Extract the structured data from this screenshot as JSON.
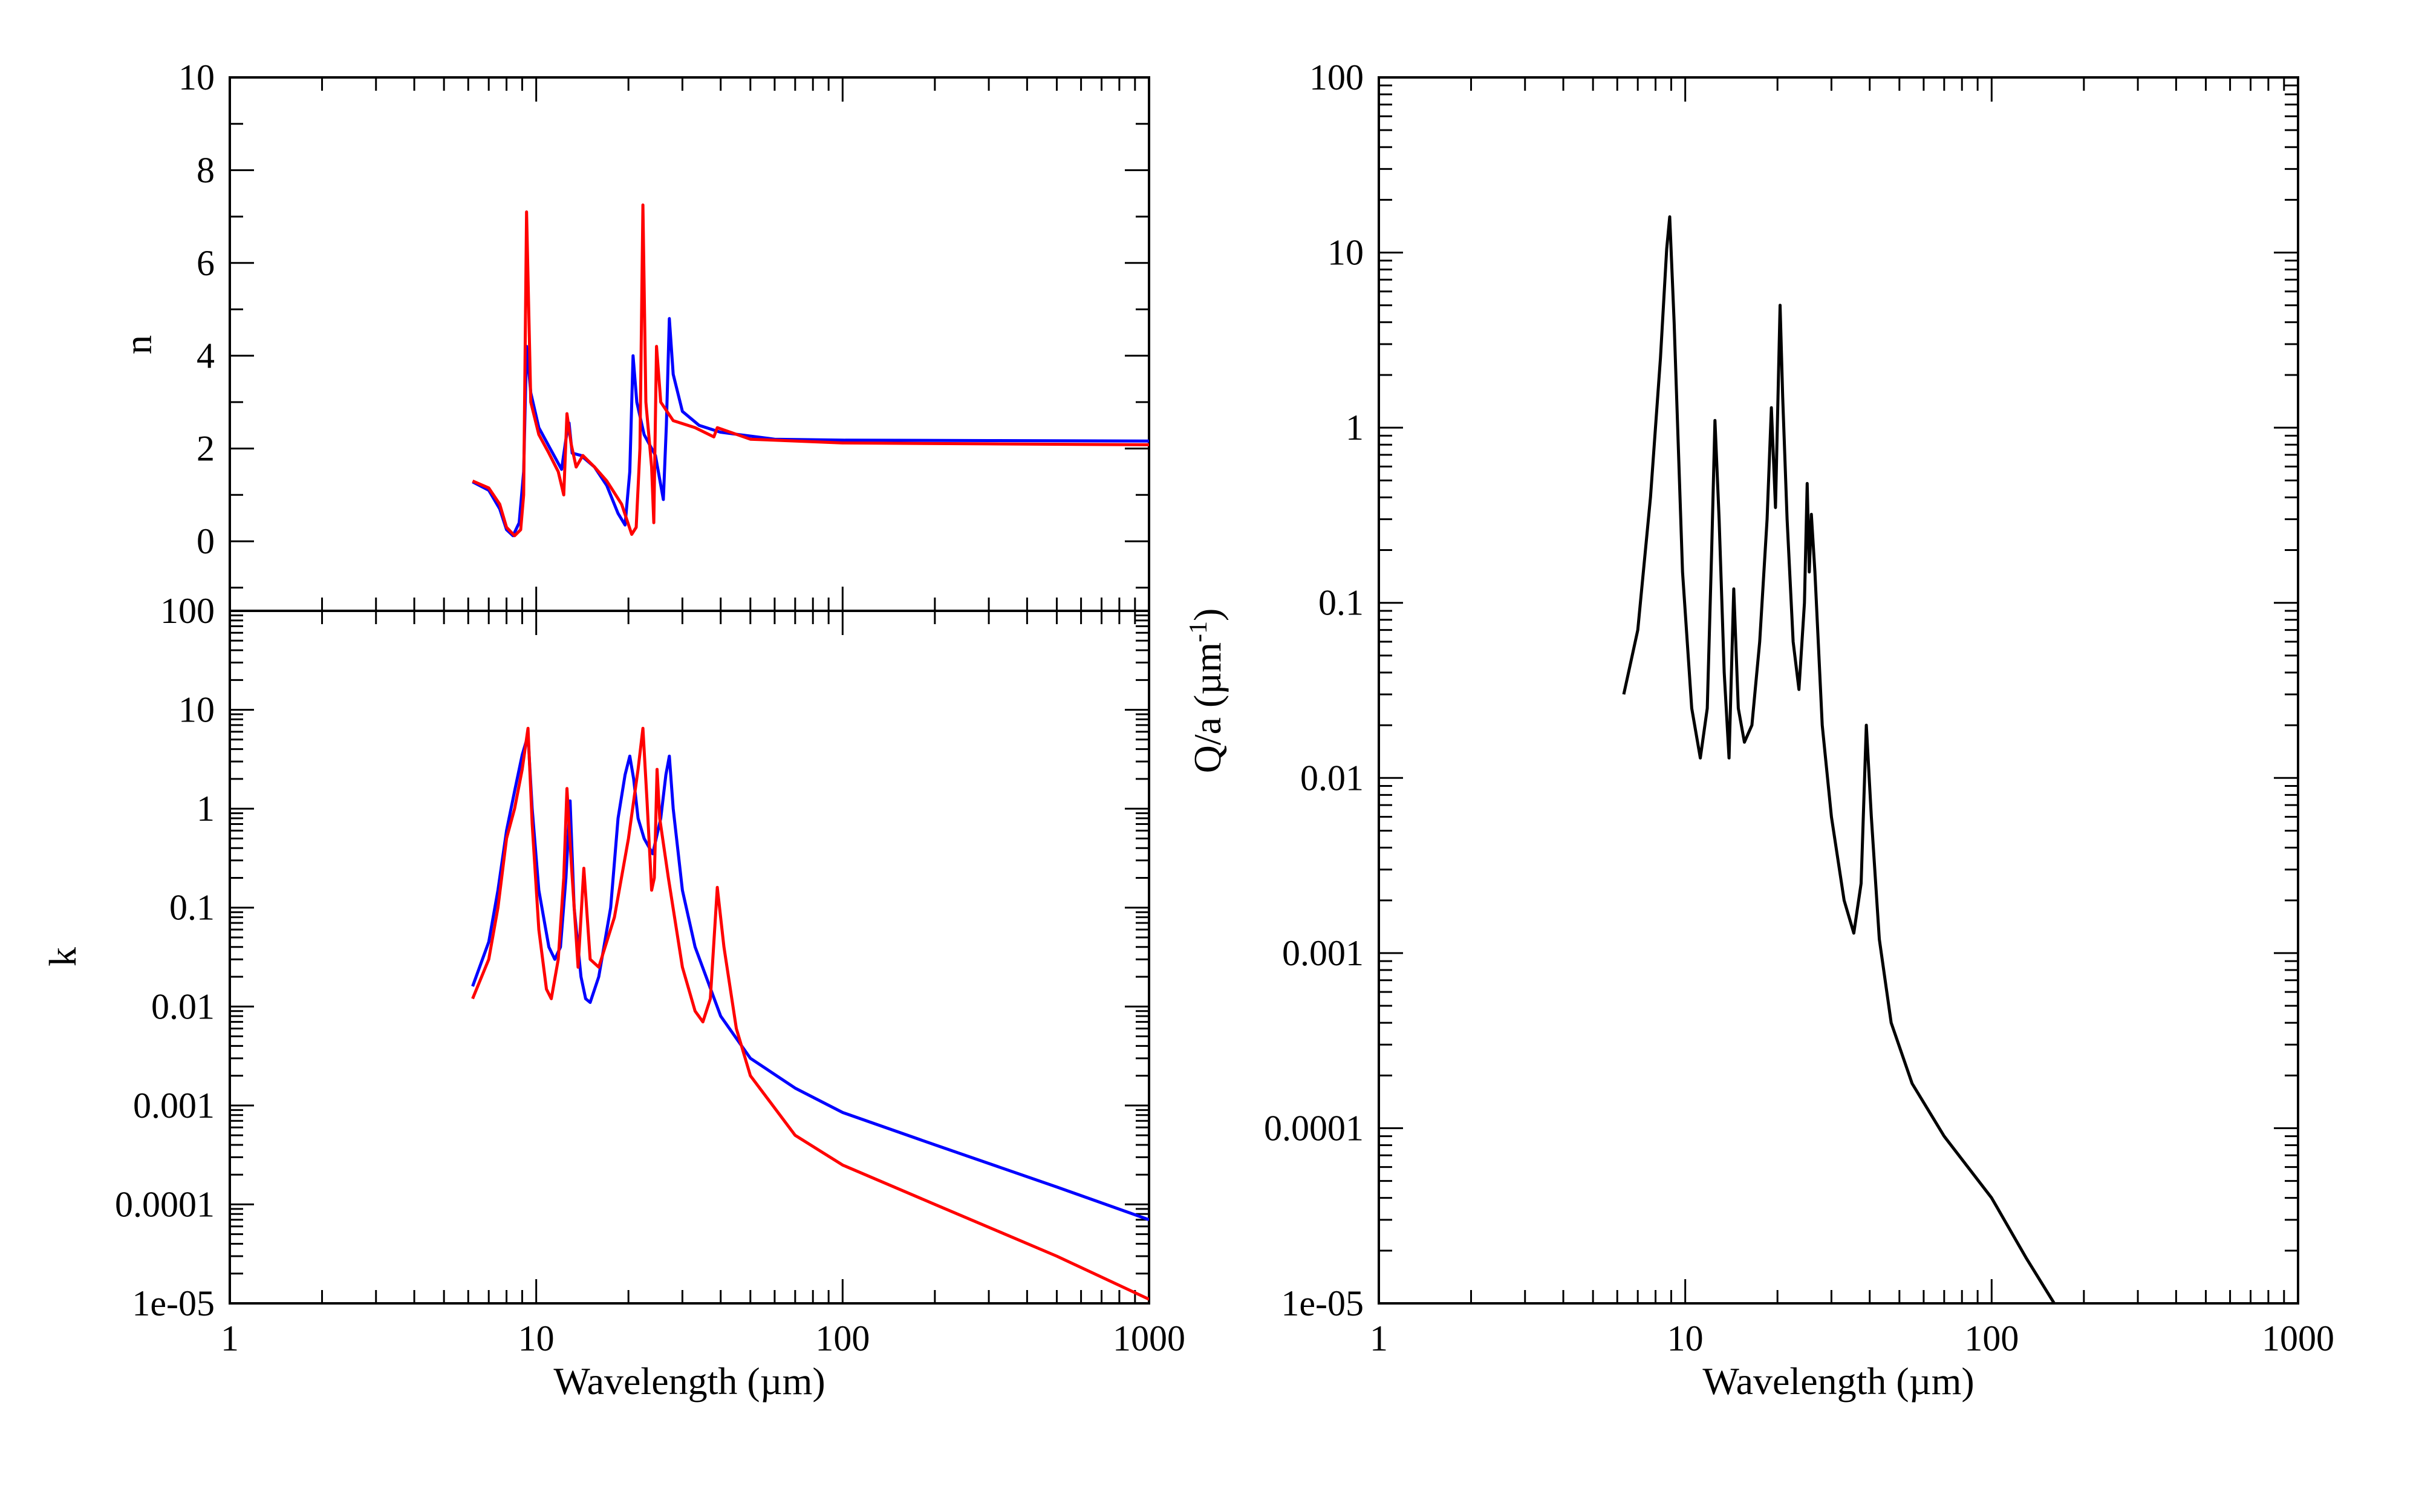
{
  "chart_data": [
    {
      "id": "n-panel",
      "type": "line",
      "xscale": "log",
      "yscale": "linear",
      "xlim": [
        1,
        1000
      ],
      "ylim": [
        -1.5,
        10
      ],
      "xlabel": "",
      "ylabel": "n",
      "xticks": [],
      "yticks": [
        "0",
        "2",
        "4",
        "6",
        "8",
        "10"
      ],
      "ytick_values": [
        0,
        2,
        4,
        6,
        8,
        10
      ],
      "grid": false,
      "series": [
        {
          "color": "#0000ff",
          "points": [
            [
              6.2,
              1.28
            ],
            [
              7.0,
              1.1
            ],
            [
              7.6,
              0.7
            ],
            [
              8.0,
              0.25
            ],
            [
              8.4,
              0.12
            ],
            [
              8.8,
              0.4
            ],
            [
              9.1,
              1.5
            ],
            [
              9.3,
              4.2
            ],
            [
              9.6,
              3.2
            ],
            [
              10.2,
              2.45
            ],
            [
              11.0,
              2.05
            ],
            [
              12.1,
              1.55
            ],
            [
              12.5,
              2.2
            ],
            [
              12.8,
              2.55
            ],
            [
              13.1,
              1.9
            ],
            [
              14.0,
              1.85
            ],
            [
              15.5,
              1.6
            ],
            [
              17.0,
              1.2
            ],
            [
              18.5,
              0.6
            ],
            [
              19.5,
              0.35
            ],
            [
              20.2,
              1.5
            ],
            [
              20.7,
              4.0
            ],
            [
              21.3,
              3.0
            ],
            [
              22.5,
              2.3
            ],
            [
              24.5,
              1.85
            ],
            [
              26.0,
              0.9
            ],
            [
              26.6,
              2.5
            ],
            [
              27.2,
              4.8
            ],
            [
              28.0,
              3.6
            ],
            [
              30.0,
              2.8
            ],
            [
              34.0,
              2.5
            ],
            [
              40.0,
              2.35
            ],
            [
              60.0,
              2.2
            ],
            [
              100.0,
              2.18
            ],
            [
              300.0,
              2.17
            ],
            [
              1000.0,
              2.16
            ]
          ]
        },
        {
          "color": "#ff0000",
          "points": [
            [
              6.2,
              1.3
            ],
            [
              7.0,
              1.15
            ],
            [
              7.6,
              0.8
            ],
            [
              8.0,
              0.3
            ],
            [
              8.5,
              0.12
            ],
            [
              8.9,
              0.25
            ],
            [
              9.1,
              1.0
            ],
            [
              9.3,
              7.1
            ],
            [
              9.6,
              3.0
            ],
            [
              10.2,
              2.3
            ],
            [
              11.0,
              1.9
            ],
            [
              11.8,
              1.5
            ],
            [
              12.3,
              1.0
            ],
            [
              12.6,
              2.75
            ],
            [
              13.0,
              2.1
            ],
            [
              13.5,
              1.6
            ],
            [
              14.2,
              1.85
            ],
            [
              15.5,
              1.6
            ],
            [
              17.0,
              1.3
            ],
            [
              19.0,
              0.8
            ],
            [
              20.5,
              0.15
            ],
            [
              21.2,
              0.3
            ],
            [
              21.8,
              2.0
            ],
            [
              22.3,
              7.25
            ],
            [
              22.8,
              3.0
            ],
            [
              23.8,
              1.6
            ],
            [
              24.2,
              0.4
            ],
            [
              24.7,
              4.2
            ],
            [
              25.5,
              3.0
            ],
            [
              28.0,
              2.6
            ],
            [
              33.0,
              2.45
            ],
            [
              38.0,
              2.25
            ],
            [
              39.0,
              2.45
            ],
            [
              50.0,
              2.2
            ],
            [
              100.0,
              2.12
            ],
            [
              300.0,
              2.1
            ],
            [
              1000.0,
              2.08
            ]
          ]
        }
      ]
    },
    {
      "id": "k-panel",
      "type": "line",
      "xscale": "log",
      "yscale": "log",
      "xlim": [
        1,
        1000
      ],
      "ylim": [
        1e-05,
        100
      ],
      "xlabel": "Wavelength (µm)",
      "ylabel": "k",
      "xticks": [
        "1",
        "10",
        "100",
        "1000"
      ],
      "xtick_values": [
        1,
        10,
        100,
        1000
      ],
      "yticks": [
        "1e-05",
        "0.0001",
        "0.001",
        "0.01",
        "0.1",
        "1",
        "10",
        "100"
      ],
      "ytick_values": [
        1e-05,
        0.0001,
        0.001,
        0.01,
        0.1,
        1,
        10,
        100
      ],
      "grid": false,
      "series": [
        {
          "color": "#0000ff",
          "points": [
            [
              6.2,
              0.016
            ],
            [
              7.0,
              0.045
            ],
            [
              7.5,
              0.15
            ],
            [
              8.0,
              0.6
            ],
            [
              8.5,
              1.5
            ],
            [
              9.0,
              3.5
            ],
            [
              9.4,
              5.5
            ],
            [
              9.7,
              1.0
            ],
            [
              10.2,
              0.15
            ],
            [
              11.0,
              0.04
            ],
            [
              11.5,
              0.03
            ],
            [
              12.0,
              0.04
            ],
            [
              12.5,
              0.2
            ],
            [
              12.9,
              1.2
            ],
            [
              13.3,
              0.1
            ],
            [
              14.0,
              0.02
            ],
            [
              14.5,
              0.012
            ],
            [
              15.0,
              0.011
            ],
            [
              16.0,
              0.02
            ],
            [
              17.5,
              0.1
            ],
            [
              18.5,
              0.8
            ],
            [
              19.5,
              2.2
            ],
            [
              20.2,
              3.4
            ],
            [
              20.8,
              2.0
            ],
            [
              21.5,
              0.8
            ],
            [
              22.5,
              0.5
            ],
            [
              24.0,
              0.35
            ],
            [
              25.5,
              0.8
            ],
            [
              26.5,
              2.2
            ],
            [
              27.2,
              3.4
            ],
            [
              28.0,
              1.0
            ],
            [
              30.0,
              0.15
            ],
            [
              33.0,
              0.04
            ],
            [
              40.0,
              0.008
            ],
            [
              50.0,
              0.003
            ],
            [
              70.0,
              0.0015
            ],
            [
              100.0,
              0.00085
            ],
            [
              200.0,
              0.0004
            ],
            [
              500.0,
              0.00015
            ],
            [
              1000.0,
              7e-05
            ]
          ]
        },
        {
          "color": "#ff0000",
          "points": [
            [
              6.2,
              0.012
            ],
            [
              7.0,
              0.03
            ],
            [
              7.5,
              0.1
            ],
            [
              8.0,
              0.5
            ],
            [
              8.5,
              1.0
            ],
            [
              9.0,
              2.5
            ],
            [
              9.4,
              6.5
            ],
            [
              9.7,
              0.7
            ],
            [
              10.2,
              0.06
            ],
            [
              10.8,
              0.015
            ],
            [
              11.2,
              0.012
            ],
            [
              11.8,
              0.03
            ],
            [
              12.3,
              0.2
            ],
            [
              12.6,
              1.6
            ],
            [
              13.0,
              0.3
            ],
            [
              13.7,
              0.025
            ],
            [
              14.3,
              0.25
            ],
            [
              15.0,
              0.03
            ],
            [
              16.0,
              0.025
            ],
            [
              18.0,
              0.08
            ],
            [
              20.0,
              0.5
            ],
            [
              21.5,
              2.5
            ],
            [
              22.3,
              6.5
            ],
            [
              23.0,
              1.2
            ],
            [
              23.8,
              0.15
            ],
            [
              24.3,
              0.2
            ],
            [
              24.8,
              2.5
            ],
            [
              25.3,
              0.8
            ],
            [
              27.0,
              0.2
            ],
            [
              30.0,
              0.025
            ],
            [
              33.0,
              0.009
            ],
            [
              35.0,
              0.007
            ],
            [
              37.0,
              0.012
            ],
            [
              39.0,
              0.16
            ],
            [
              41.0,
              0.04
            ],
            [
              45.0,
              0.006
            ],
            [
              50.0,
              0.002
            ],
            [
              70.0,
              0.0005
            ],
            [
              100.0,
              0.00025
            ],
            [
              200.0,
              0.0001
            ],
            [
              500.0,
              3e-05
            ],
            [
              1000.0,
              1.1e-05
            ]
          ]
        }
      ]
    },
    {
      "id": "q-panel",
      "type": "line",
      "xscale": "log",
      "yscale": "log",
      "xlim": [
        1,
        1000
      ],
      "ylim": [
        1e-05,
        100
      ],
      "xlabel": "Wavelength (µm)",
      "ylabel": "Q/a (µm",
      "ylabel_sup": "-1",
      "ylabel_end": ")",
      "xticks": [
        "1",
        "10",
        "100",
        "1000"
      ],
      "xtick_values": [
        1,
        10,
        100,
        1000
      ],
      "yticks": [
        "1e-05",
        "0.0001",
        "0.001",
        "0.01",
        "0.1",
        "1",
        "10",
        "100"
      ],
      "ytick_values": [
        1e-05,
        0.0001,
        0.001,
        0.01,
        0.1,
        1,
        10,
        100
      ],
      "grid": false,
      "series": [
        {
          "color": "#000000",
          "points": [
            [
              6.3,
              0.03
            ],
            [
              7.0,
              0.07
            ],
            [
              7.7,
              0.4
            ],
            [
              8.3,
              2.5
            ],
            [
              8.7,
              10.5
            ],
            [
              8.9,
              16.0
            ],
            [
              9.2,
              4.0
            ],
            [
              9.8,
              0.15
            ],
            [
              10.5,
              0.025
            ],
            [
              11.2,
              0.013
            ],
            [
              11.8,
              0.025
            ],
            [
              12.2,
              0.2
            ],
            [
              12.5,
              1.1
            ],
            [
              12.9,
              0.3
            ],
            [
              13.4,
              0.04
            ],
            [
              13.9,
              0.013
            ],
            [
              14.4,
              0.12
            ],
            [
              14.9,
              0.025
            ],
            [
              15.6,
              0.016
            ],
            [
              16.5,
              0.02
            ],
            [
              17.5,
              0.06
            ],
            [
              18.5,
              0.3
            ],
            [
              19.1,
              1.3
            ],
            [
              19.7,
              0.35
            ],
            [
              20.4,
              5.0
            ],
            [
              20.8,
              1.5
            ],
            [
              21.5,
              0.3
            ],
            [
              22.5,
              0.06
            ],
            [
              23.5,
              0.032
            ],
            [
              24.5,
              0.1
            ],
            [
              25.0,
              0.48
            ],
            [
              25.4,
              0.15
            ],
            [
              25.8,
              0.32
            ],
            [
              26.5,
              0.15
            ],
            [
              28.0,
              0.02
            ],
            [
              30.0,
              0.006
            ],
            [
              33.0,
              0.002
            ],
            [
              35.5,
              0.0013
            ],
            [
              37.5,
              0.0025
            ],
            [
              39.0,
              0.02
            ],
            [
              40.5,
              0.006
            ],
            [
              43.0,
              0.0012
            ],
            [
              47.0,
              0.0004
            ],
            [
              55.0,
              0.00018
            ],
            [
              70.0,
              9e-05
            ],
            [
              100.0,
              4e-05
            ],
            [
              130.0,
              1.8e-05
            ],
            [
              160.0,
              1e-05
            ]
          ]
        }
      ]
    }
  ]
}
